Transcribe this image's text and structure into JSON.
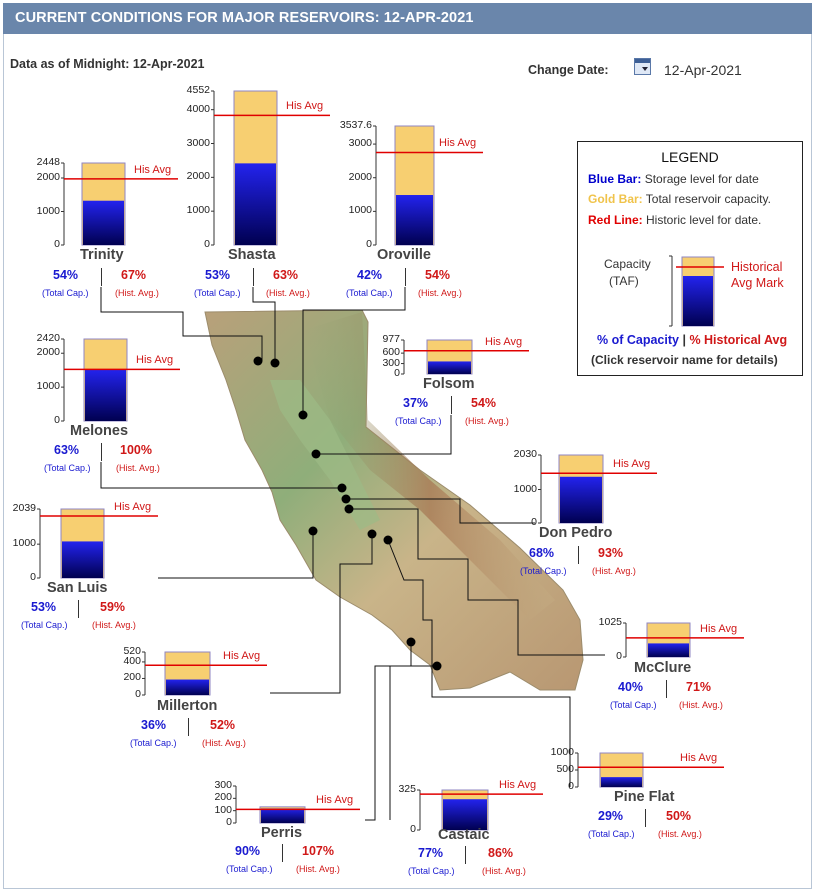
{
  "header": {
    "title": "CURRENT CONDITIONS FOR MAJOR RESERVOIRS: 12-APR-2021"
  },
  "info": {
    "data_as_of": "Data as of Midnight: 12-Apr-2021",
    "change_date_label": "Change Date:",
    "date_value": "12-Apr-2021"
  },
  "legend": {
    "title": "LEGEND",
    "blue_bar_label": "Blue Bar:",
    "blue_bar_text": "Storage level for date",
    "gold_bar_label": "Gold Bar:",
    "gold_bar_text": "Total reservoir capacity.",
    "red_line_label": "Red Line:",
    "red_line_text": "Historic level for date.",
    "capacity_label_1": "Capacity",
    "capacity_label_2": "(TAF)",
    "historical_mark_1": "Historical",
    "historical_mark_2": "Avg Mark",
    "pct_capacity": "% of Capacity",
    "pct_divider": "|",
    "pct_hist": "% Historical Avg",
    "click_note": "(Click reservoir name for details)",
    "colors": {
      "blue": "#0000cc",
      "gold": "#f0c34a",
      "red": "#e00000"
    }
  },
  "common": {
    "total_cap": "(Total Cap.)",
    "hist_avg_small": "(Hist. Avg.)",
    "his_avg": "His Avg"
  },
  "reservoirs": [
    {
      "name": "Trinity",
      "pct_capacity": "54%",
      "pct_hist": "67%",
      "capacity_taf": 2448,
      "storage_taf": 1322,
      "hist_avg_taf": 1973,
      "ticks": [
        "2448",
        "2000",
        "1000",
        "0"
      ]
    },
    {
      "name": "Shasta",
      "pct_capacity": "53%",
      "pct_hist": "63%",
      "capacity_taf": 4552,
      "storage_taf": 2413,
      "hist_avg_taf": 3830,
      "ticks": [
        "4552",
        "4000",
        "3000",
        "2000",
        "1000",
        "0"
      ]
    },
    {
      "name": "Oroville",
      "pct_capacity": "42%",
      "pct_hist": "54%",
      "capacity_taf": 3537.6,
      "storage_taf": 1486,
      "hist_avg_taf": 2751,
      "ticks": [
        "3537.6",
        "3000",
        "2000",
        "1000",
        "0"
      ]
    },
    {
      "name": "Folsom",
      "pct_capacity": "37%",
      "pct_hist": "54%",
      "capacity_taf": 977,
      "storage_taf": 361,
      "hist_avg_taf": 669,
      "ticks": [
        "977",
        "600",
        "300",
        "0"
      ]
    },
    {
      "name": "Melones",
      "pct_capacity": "63%",
      "pct_hist": "100%",
      "capacity_taf": 2420,
      "storage_taf": 1525,
      "hist_avg_taf": 1525,
      "ticks": [
        "2420",
        "2000",
        "1000",
        "0"
      ]
    },
    {
      "name": "Don Pedro",
      "pct_capacity": "68%",
      "pct_hist": "93%",
      "capacity_taf": 2030,
      "storage_taf": 1380,
      "hist_avg_taf": 1484,
      "ticks": [
        "2030",
        "1000",
        "0"
      ]
    },
    {
      "name": "San Luis",
      "pct_capacity": "53%",
      "pct_hist": "59%",
      "capacity_taf": 2039,
      "storage_taf": 1081,
      "hist_avg_taf": 1832,
      "ticks": [
        "2039",
        "1000",
        "0"
      ]
    },
    {
      "name": "McClure",
      "pct_capacity": "40%",
      "pct_hist": "71%",
      "capacity_taf": 1025,
      "storage_taf": 410,
      "hist_avg_taf": 577,
      "ticks": [
        "1025",
        "0"
      ]
    },
    {
      "name": "Millerton",
      "pct_capacity": "36%",
      "pct_hist": "52%",
      "capacity_taf": 520,
      "storage_taf": 187,
      "hist_avg_taf": 360,
      "ticks": [
        "520",
        "400",
        "200",
        "0"
      ]
    },
    {
      "name": "Pine Flat",
      "pct_capacity": "29%",
      "pct_hist": "50%",
      "capacity_taf": 1000,
      "storage_taf": 290,
      "hist_avg_taf": 580,
      "ticks": [
        "1000",
        "500",
        "0"
      ]
    },
    {
      "name": "Perris",
      "pct_capacity": "90%",
      "pct_hist": "107%",
      "capacity_taf": 131,
      "storage_taf": 118,
      "hist_avg_taf": 110,
      "ticks": [
        "300",
        "200",
        "100",
        "0"
      ]
    },
    {
      "name": "Castaic",
      "pct_capacity": "77%",
      "pct_hist": "86%",
      "capacity_taf": 325,
      "storage_taf": 250,
      "hist_avg_taf": 291,
      "ticks": [
        "325",
        "0"
      ]
    }
  ]
}
